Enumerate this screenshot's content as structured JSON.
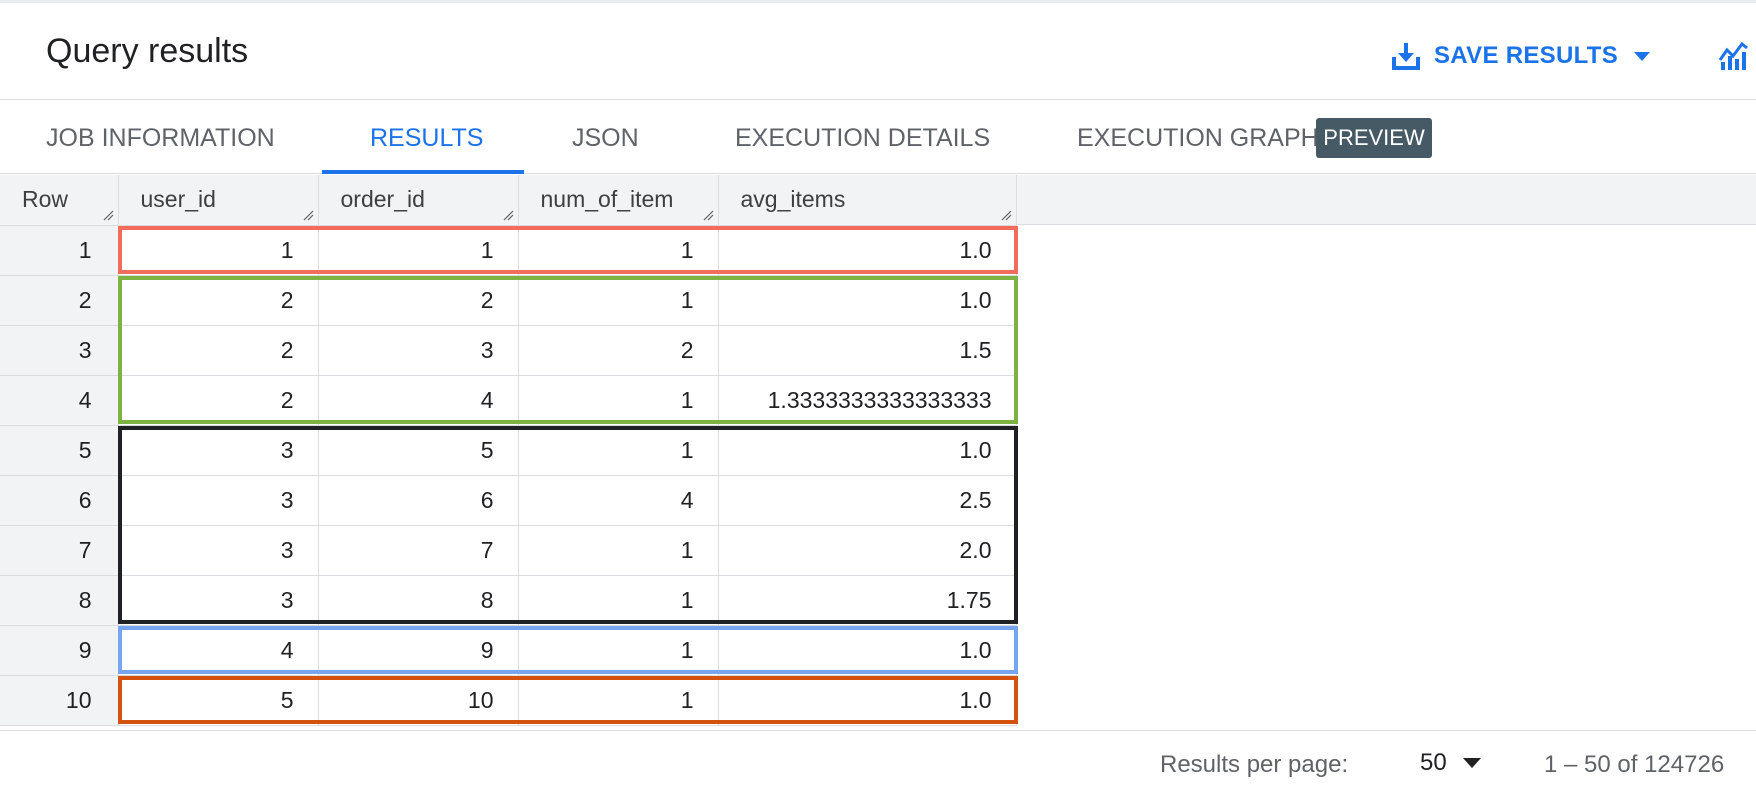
{
  "header": {
    "title": "Query results",
    "save_label": "SAVE RESULTS",
    "save_icon": "download-icon",
    "explore_icon": "chart-icon"
  },
  "tabs": [
    {
      "label": "JOB INFORMATION",
      "active": false
    },
    {
      "label": "RESULTS",
      "active": true
    },
    {
      "label": "JSON",
      "active": false
    },
    {
      "label": "EXECUTION DETAILS",
      "active": false
    },
    {
      "label": "EXECUTION GRAPH",
      "active": false,
      "badge": "PREVIEW"
    }
  ],
  "table": {
    "columns": [
      "Row",
      "user_id",
      "order_id",
      "num_of_item",
      "avg_items"
    ],
    "rows": [
      [
        "1",
        "1",
        "1",
        "1",
        "1.0"
      ],
      [
        "2",
        "2",
        "2",
        "1",
        "1.0"
      ],
      [
        "3",
        "2",
        "3",
        "2",
        "1.5"
      ],
      [
        "4",
        "2",
        "4",
        "1",
        "1.3333333333333333"
      ],
      [
        "5",
        "3",
        "5",
        "1",
        "1.0"
      ],
      [
        "6",
        "3",
        "6",
        "4",
        "2.5"
      ],
      [
        "7",
        "3",
        "7",
        "1",
        "2.0"
      ],
      [
        "8",
        "3",
        "8",
        "1",
        "1.75"
      ],
      [
        "9",
        "4",
        "9",
        "1",
        "1.0"
      ],
      [
        "10",
        "5",
        "10",
        "1",
        "1.0"
      ]
    ]
  },
  "highlight_groups": [
    {
      "user_id": "1",
      "rows": [
        "1"
      ],
      "color": "#f26b5b"
    },
    {
      "user_id": "2",
      "rows": [
        "2",
        "4"
      ],
      "color": "#7cb342"
    },
    {
      "user_id": "3",
      "rows": [
        "5",
        "8"
      ],
      "color": "#202124"
    },
    {
      "user_id": "4",
      "rows": [
        "9"
      ],
      "color": "#78a6ee"
    },
    {
      "user_id": "5",
      "rows": [
        "10"
      ],
      "color": "#d4520f"
    }
  ],
  "footer": {
    "rpp_label": "Results per page:",
    "rpp_value": "50",
    "range": "1 – 50 of 124726"
  },
  "colors": {
    "accent": "#1a73e8",
    "badge": "#455a64",
    "header_bg": "#f1f3f4"
  }
}
